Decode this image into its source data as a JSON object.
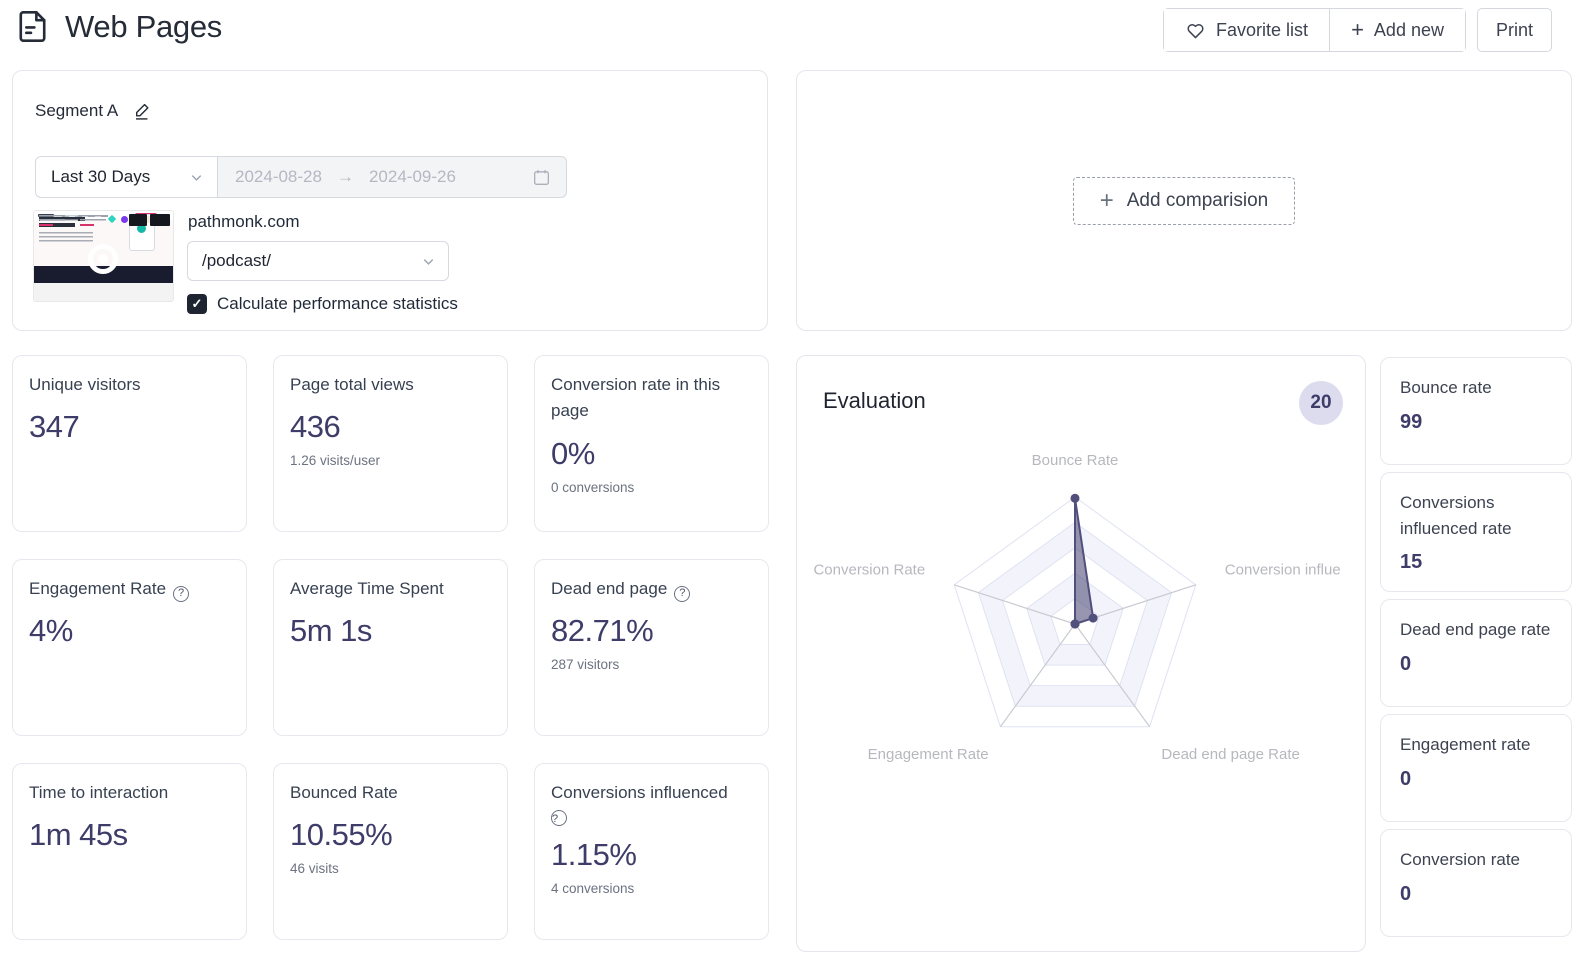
{
  "header": {
    "title": "Web Pages",
    "favorite_button": "Favorite list",
    "add_new_button": "Add new",
    "print_button": "Print"
  },
  "segment": {
    "name": "Segment A",
    "date_preset": "Last 30 Days",
    "date_start": "2024-08-28",
    "date_arrow": "→",
    "date_end": "2024-09-26",
    "site_domain": "pathmonk.com",
    "page_select_value": "/podcast/",
    "stats_checkbox_label": "Calculate performance statistics",
    "stats_checkbox_checked": true,
    "checkmark": "✓"
  },
  "comparison": {
    "add_button": "Add comparision",
    "plus": "+"
  },
  "metric_cards": [
    {
      "title": "Unique visitors",
      "value": "347",
      "subtext": "",
      "help": false
    },
    {
      "title": "Page total views",
      "value": "436",
      "subtext": "1.26 visits/user",
      "help": false
    },
    {
      "title": "Conversion rate in this page",
      "value": "0%",
      "subtext": "0 conversions",
      "help": false
    },
    {
      "title": "Engagement Rate",
      "value": "4%",
      "subtext": "",
      "help": true
    },
    {
      "title": "Average Time Spent",
      "value": "5m 1s",
      "subtext": "",
      "help": false
    },
    {
      "title": "Dead end page",
      "value": "82.71%",
      "subtext": "287 visitors",
      "help": true
    },
    {
      "title": "Time to interaction",
      "value": "1m 45s",
      "subtext": "",
      "help": false
    },
    {
      "title": "Bounced Rate",
      "value": "10.55%",
      "subtext": "46 visits",
      "help": false
    },
    {
      "title": "Conversions influenced",
      "value": "1.15%",
      "subtext": "4 conversions",
      "help": true,
      "help_newline": true
    }
  ],
  "evaluation": {
    "title": "Evaluation",
    "badge_count": "20"
  },
  "rate_cards": [
    {
      "label": "Bounce rate",
      "value": "99"
    },
    {
      "label": "Conversions influenced rate",
      "value": "15"
    },
    {
      "label": "Dead end page rate",
      "value": "0"
    },
    {
      "label": "Engagement rate",
      "value": "0"
    },
    {
      "label": "Conversion rate",
      "value": "0"
    }
  ],
  "chart_data": {
    "type": "radar",
    "title": "Evaluation",
    "indicators": [
      "Bounce Rate",
      "Conversion influe",
      "Dead end page Rate",
      "Engagement Rate",
      "Conversion Rate"
    ],
    "series": [
      {
        "name": "Segment A",
        "values": [
          99,
          15,
          0,
          0,
          0
        ]
      }
    ],
    "max": 100,
    "rings": 5,
    "grid": true,
    "legend_position": "none"
  },
  "colors": {
    "value_indigo": "#3e3c68",
    "radar_fill": "rgba(81,79,124,0.6)",
    "radar_stroke": "#514f7c",
    "ring_stroke": "#dfe2f2",
    "ring_alt_fill": "#f3f4fb",
    "spoke": "#c9cad1",
    "axis_label": "#b7b8bf",
    "badge_bg": "#dcdcee"
  }
}
